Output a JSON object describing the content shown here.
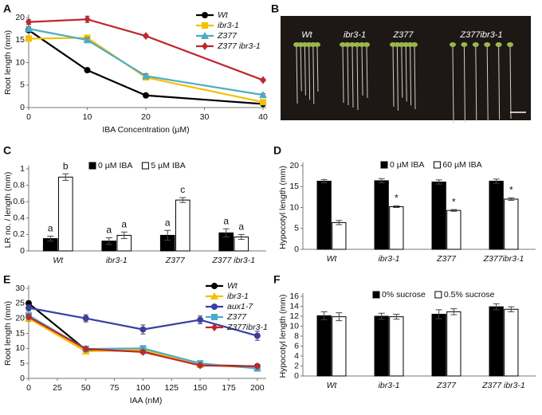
{
  "chart_data": [
    {
      "panel": "A",
      "type": "line",
      "ylabel": "Root length (mm)",
      "xlabel": "IBA Concentration (µM)",
      "x": [
        0,
        10,
        20,
        40
      ],
      "xlim": [
        0,
        40
      ],
      "xticks": [
        0,
        10,
        20,
        30,
        40
      ],
      "ylim": [
        0,
        20
      ],
      "yticks": [
        0,
        5,
        10,
        15,
        20
      ],
      "legend": "upper right",
      "series": [
        {
          "name": "Wt",
          "color": "#000000",
          "marker": "circle",
          "values": [
            17.2,
            8.3,
            2.7,
            0.8
          ],
          "errors": [
            0.5,
            0.5,
            0.3,
            0.2
          ]
        },
        {
          "name": "ibr3-1",
          "color": "#f5c000",
          "marker": "square",
          "values": [
            15.3,
            15.5,
            6.7,
            1.2
          ],
          "errors": [
            0.6,
            0.6,
            0.5,
            0.3
          ]
        },
        {
          "name": "Z377",
          "color": "#4bacc6",
          "marker": "triangle",
          "values": [
            17.5,
            15.0,
            7.0,
            2.8
          ],
          "errors": [
            0.5,
            0.5,
            0.5,
            0.3
          ]
        },
        {
          "name": "Z377 ibr3-1",
          "color": "#c0272d",
          "marker": "diamond",
          "values": [
            19.0,
            19.6,
            15.9,
            6.1
          ],
          "errors": [
            0.5,
            0.7,
            0.3,
            0.2
          ]
        }
      ]
    },
    {
      "panel": "C",
      "type": "bar",
      "ylabel": "LR no. / length (mm)",
      "categories": [
        "Wt",
        "ibr3-1",
        "Z377",
        "Z377 ibr3-1"
      ],
      "ylim": [
        0,
        1
      ],
      "yticks": [
        0,
        0.2,
        0.4,
        0.6,
        0.8,
        1
      ],
      "legend": "upper center",
      "series": [
        {
          "name": "0 µM IBA",
          "color": "#000000",
          "values": [
            0.15,
            0.12,
            0.19,
            0.22
          ],
          "errors": [
            0.03,
            0.04,
            0.06,
            0.05
          ],
          "labels": [
            "a",
            "a",
            "a",
            "a"
          ]
        },
        {
          "name": "5 µM IBA",
          "color": "#ffffff",
          "values": [
            0.9,
            0.19,
            0.62,
            0.17
          ],
          "errors": [
            0.04,
            0.04,
            0.03,
            0.03
          ],
          "labels": [
            "b",
            "a",
            "c",
            "a"
          ]
        }
      ]
    },
    {
      "panel": "D",
      "type": "bar",
      "ylabel": "Hypocotyl length (mm)",
      "categories": [
        "Wt",
        "ibr3-1",
        "Z377",
        "Z377ibr3-1"
      ],
      "ylim": [
        0,
        20
      ],
      "yticks": [
        0,
        5,
        10,
        15,
        20
      ],
      "legend": "upper center",
      "series": [
        {
          "name": "0 µM IBA",
          "color": "#000000",
          "values": [
            16.3,
            16.4,
            16.1,
            16.3
          ],
          "errors": [
            0.4,
            0.5,
            0.5,
            0.5
          ],
          "labels": [
            null,
            null,
            null,
            null
          ]
        },
        {
          "name": "60 µM IBA",
          "color": "#ffffff",
          "values": [
            6.4,
            10.2,
            9.3,
            12.0
          ],
          "errors": [
            0.5,
            0.2,
            0.2,
            0.3
          ],
          "labels": [
            null,
            "*",
            "*",
            "*"
          ]
        }
      ]
    },
    {
      "panel": "E",
      "type": "line",
      "ylabel": "Root length (mm)",
      "xlabel": "IAA (nM)",
      "x": [
        0,
        50,
        100,
        150,
        200
      ],
      "xlim": [
        0,
        205
      ],
      "xticks": [
        0,
        25,
        50,
        75,
        100,
        125,
        150,
        175,
        200
      ],
      "ylim": [
        0,
        30
      ],
      "yticks": [
        0,
        5,
        10,
        15,
        20,
        25,
        30
      ],
      "legend": "upper right",
      "series": [
        {
          "name": "Wt",
          "color": "#000000",
          "marker": "circle",
          "values": [
            25.0,
            9.5,
            9.0,
            4.5,
            4.0
          ],
          "errors": [
            0.8,
            0.8,
            0.6,
            0.5,
            0.4
          ]
        },
        {
          "name": "ibr3-1",
          "color": "#f5c000",
          "marker": "triangle",
          "values": [
            20.0,
            9.0,
            9.5,
            4.5,
            3.5
          ],
          "errors": [
            1.0,
            0.8,
            0.6,
            0.5,
            0.4
          ]
        },
        {
          "name": "aux1-7",
          "color": "#3b3fa3",
          "marker": "circle",
          "values": [
            23.5,
            20.0,
            16.3,
            19.5,
            14.2
          ],
          "errors": [
            1.0,
            1.2,
            1.5,
            1.3,
            1.5
          ]
        },
        {
          "name": "Z377",
          "color": "#4bacc6",
          "marker": "square",
          "values": [
            21.0,
            9.8,
            10.0,
            5.0,
            3.3
          ],
          "errors": [
            0.8,
            0.8,
            0.8,
            0.6,
            0.4
          ]
        },
        {
          "name": "Z377ibr3-1",
          "color": "#c0272d",
          "marker": "diamond",
          "values": [
            20.5,
            9.8,
            8.8,
            4.3,
            4.0
          ],
          "errors": [
            0.8,
            0.6,
            0.6,
            0.5,
            0.4
          ]
        }
      ]
    },
    {
      "panel": "F",
      "type": "bar",
      "ylabel": "Hypocotyl length (mm)",
      "categories": [
        "Wt",
        "ibr3-1",
        "Z377",
        "Z377 ibr3-1"
      ],
      "ylim": [
        0,
        16
      ],
      "yticks": [
        0,
        2,
        4,
        6,
        8,
        10,
        12,
        14,
        16
      ],
      "legend": "upper center",
      "series": [
        {
          "name": "0% sucrose",
          "color": "#000000",
          "values": [
            12.1,
            12.0,
            12.4,
            13.9
          ],
          "errors": [
            0.8,
            0.6,
            0.9,
            0.6
          ],
          "labels": [
            null,
            null,
            null,
            null
          ]
        },
        {
          "name": "0.5% sucrose",
          "color": "#ffffff",
          "values": [
            11.9,
            11.9,
            12.9,
            13.4
          ],
          "errors": [
            0.8,
            0.5,
            0.6,
            0.5
          ],
          "labels": [
            null,
            null,
            null,
            null
          ]
        }
      ]
    }
  ],
  "photo": {
    "panel": "B",
    "labels": [
      "Wt",
      "ibr3-1",
      "Z377",
      "Z377ibr3-1"
    ]
  }
}
